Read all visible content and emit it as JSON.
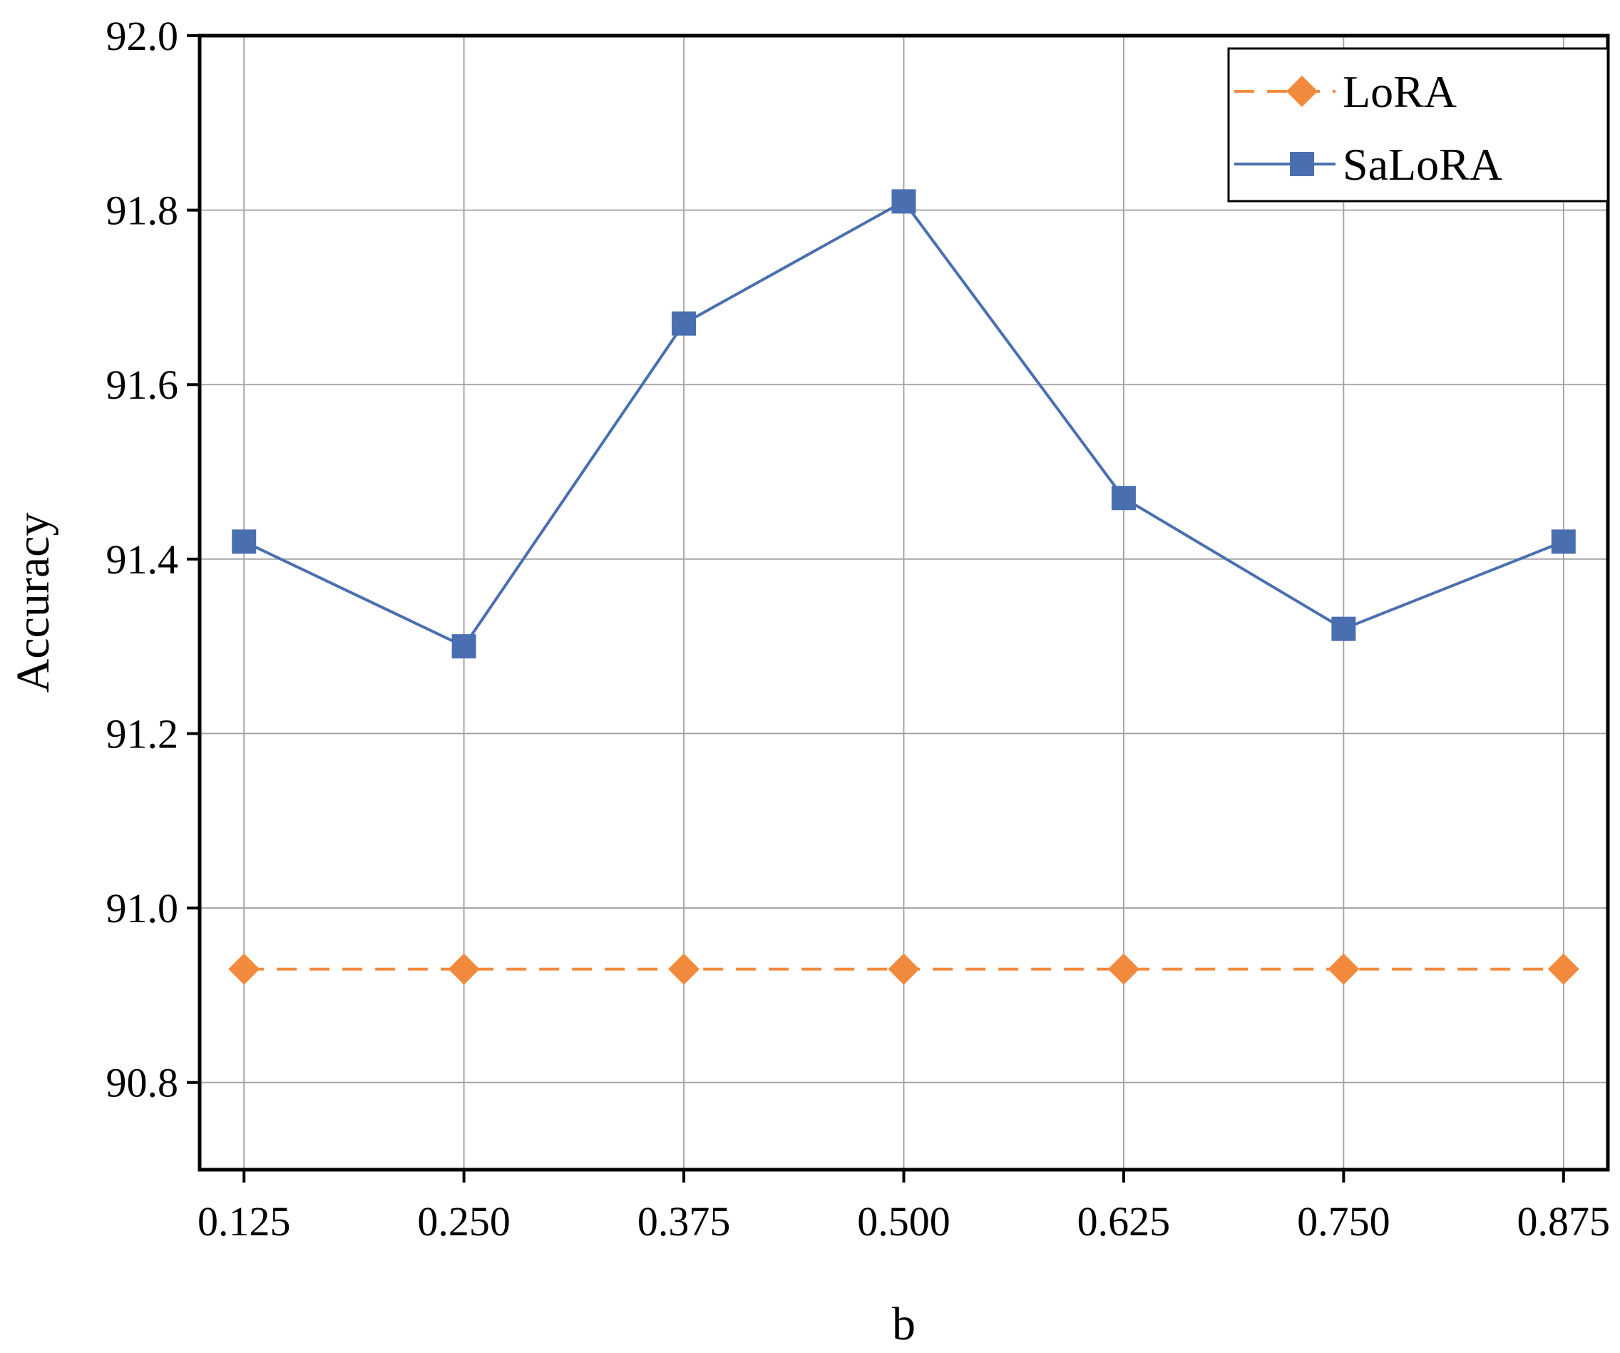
{
  "chart_data": {
    "type": "line",
    "title": "",
    "xlabel": "b",
    "ylabel": "Accuracy",
    "x": [
      0.125,
      0.25,
      0.375,
      0.5,
      0.625,
      0.75,
      0.875
    ],
    "x_tick_labels": [
      "0.125",
      "0.250",
      "0.375",
      "0.500",
      "0.625",
      "0.750",
      "0.875"
    ],
    "y_ticks": [
      90.8,
      91.0,
      91.2,
      91.4,
      91.6,
      91.8,
      92.0
    ],
    "y_tick_labels": [
      "90.8",
      "91.0",
      "91.2",
      "91.4",
      "91.6",
      "91.8",
      "92.0"
    ],
    "ylim": [
      90.7,
      92.0
    ],
    "grid": true,
    "legend_position": "top-right",
    "series": [
      {
        "name": "LoRA",
        "color": "#f28a3d",
        "line_style": "dashed",
        "marker": "diamond",
        "values": [
          90.93,
          90.93,
          90.93,
          90.93,
          90.93,
          90.93,
          90.93
        ]
      },
      {
        "name": "SaLoRA",
        "color": "#4a6fb0",
        "line_style": "solid",
        "marker": "square",
        "values": [
          91.42,
          91.3,
          91.67,
          91.81,
          91.47,
          91.32,
          91.42
        ]
      }
    ]
  }
}
